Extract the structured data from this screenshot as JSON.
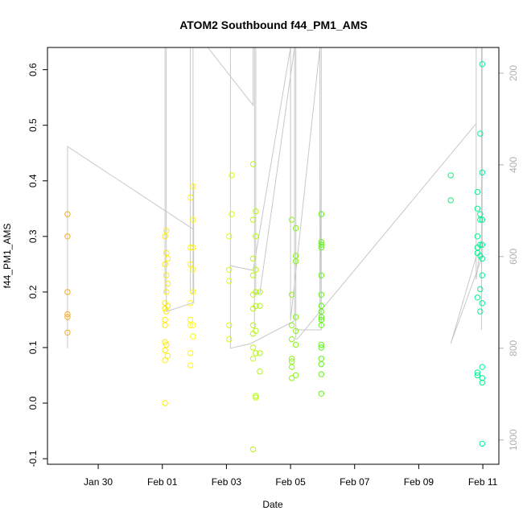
{
  "chart_data": {
    "type": "scatter",
    "title": "ATOM2 Southbound f44_PM1_AMS",
    "xlabel": "Date",
    "ylabel": "f44_PM1_AMS",
    "xlim": [
      "2017-01-28T10:00",
      "2017-02-11T12:00"
    ],
    "ylim": [
      -0.11,
      0.64
    ],
    "y_ticks": [
      -0.1,
      0.0,
      0.1,
      0.2,
      0.3,
      0.4,
      0.5,
      0.6
    ],
    "y_tick_labels": [
      "-0.1",
      "0.0",
      "0.1",
      "0.2",
      "0.3",
      "0.4",
      "0.5",
      "0.6"
    ],
    "x_ticks": [
      "2017-01-30",
      "2017-02-01",
      "2017-02-03",
      "2017-02-05",
      "2017-02-07",
      "2017-02-09",
      "2017-02-11"
    ],
    "x_tick_labels": [
      "Jan 30",
      "Feb 01",
      "Feb 03",
      "Feb 05",
      "Feb 07",
      "Feb 09",
      "Feb 11"
    ],
    "right_axis": {
      "ylim": [
        1053,
        144
      ],
      "ticks": [
        200,
        400,
        600,
        800,
        1000
      ],
      "tick_labels": [
        "200",
        "400",
        "600",
        "800",
        "1000"
      ],
      "color": "#b0b0b0"
    },
    "grid": false,
    "marker": "open-circle",
    "point_color_gradient": [
      "#f0a030",
      "#ffff00",
      "#40f020",
      "#00f0a0"
    ],
    "series": [
      {
        "values": [
          {
            "x": "2017-01-29T01:00",
            "y": 0.34
          },
          {
            "x": "2017-01-29T01:00",
            "y": 0.3
          },
          {
            "x": "2017-01-29T01:00",
            "y": 0.2
          },
          {
            "x": "2017-01-29T01:00",
            "y": 0.16
          },
          {
            "x": "2017-01-29T01:00",
            "y": 0.155
          },
          {
            "x": "2017-01-29T01:00",
            "y": 0.127
          },
          {
            "x": "2017-02-01T02:00",
            "y": 0.3
          },
          {
            "x": "2017-02-01T02:00",
            "y": 0.25
          },
          {
            "x": "2017-02-01T02:00",
            "y": 0.18
          },
          {
            "x": "2017-02-01T02:00",
            "y": 0.17
          },
          {
            "x": "2017-02-01T02:00",
            "y": 0.15
          },
          {
            "x": "2017-02-01T02:00",
            "y": 0.14
          },
          {
            "x": "2017-02-01T02:00",
            "y": 0.11
          },
          {
            "x": "2017-02-01T02:00",
            "y": 0.095
          },
          {
            "x": "2017-02-01T02:00",
            "y": 0.077
          },
          {
            "x": "2017-02-01T02:00",
            "y": 0.0
          },
          {
            "x": "2017-02-01T03:00",
            "y": 0.31
          },
          {
            "x": "2017-02-01T03:00",
            "y": 0.27
          },
          {
            "x": "2017-02-01T03:00",
            "y": 0.23
          },
          {
            "x": "2017-02-01T03:00",
            "y": 0.2
          },
          {
            "x": "2017-02-01T03:00",
            "y": 0.165
          },
          {
            "x": "2017-02-01T03:00",
            "y": 0.105
          },
          {
            "x": "2017-02-01T04:00",
            "y": 0.26
          },
          {
            "x": "2017-02-01T04:00",
            "y": 0.215
          },
          {
            "x": "2017-02-01T04:00",
            "y": 0.175
          },
          {
            "x": "2017-02-01T04:00",
            "y": 0.085
          },
          {
            "x": "2017-02-01T21:00",
            "y": 0.37
          },
          {
            "x": "2017-02-01T21:00",
            "y": 0.28
          },
          {
            "x": "2017-02-01T21:00",
            "y": 0.25
          },
          {
            "x": "2017-02-01T21:00",
            "y": 0.18
          },
          {
            "x": "2017-02-01T21:00",
            "y": 0.15
          },
          {
            "x": "2017-02-01T21:00",
            "y": 0.14
          },
          {
            "x": "2017-02-01T21:00",
            "y": 0.09
          },
          {
            "x": "2017-02-01T21:00",
            "y": 0.068
          },
          {
            "x": "2017-02-01T23:00",
            "y": 0.39
          },
          {
            "x": "2017-02-01T23:00",
            "y": 0.33
          },
          {
            "x": "2017-02-01T23:00",
            "y": 0.28
          },
          {
            "x": "2017-02-01T23:00",
            "y": 0.24
          },
          {
            "x": "2017-02-01T23:00",
            "y": 0.2
          },
          {
            "x": "2017-02-01T23:00",
            "y": 0.14
          },
          {
            "x": "2017-02-01T23:00",
            "y": 0.12
          },
          {
            "x": "2017-02-03T02:00",
            "y": 0.3
          },
          {
            "x": "2017-02-03T02:00",
            "y": 0.24
          },
          {
            "x": "2017-02-03T02:00",
            "y": 0.22
          },
          {
            "x": "2017-02-03T02:00",
            "y": 0.14
          },
          {
            "x": "2017-02-03T02:00",
            "y": 0.115
          },
          {
            "x": "2017-02-03T04:00",
            "y": 0.41
          },
          {
            "x": "2017-02-03T04:00",
            "y": 0.34
          },
          {
            "x": "2017-02-03T20:00",
            "y": 0.43
          },
          {
            "x": "2017-02-03T20:00",
            "y": 0.33
          },
          {
            "x": "2017-02-03T20:00",
            "y": 0.26
          },
          {
            "x": "2017-02-03T20:00",
            "y": 0.23
          },
          {
            "x": "2017-02-03T20:00",
            "y": 0.195
          },
          {
            "x": "2017-02-03T20:00",
            "y": 0.17
          },
          {
            "x": "2017-02-03T20:00",
            "y": 0.14
          },
          {
            "x": "2017-02-03T20:00",
            "y": 0.125
          },
          {
            "x": "2017-02-03T20:00",
            "y": 0.1
          },
          {
            "x": "2017-02-03T20:00",
            "y": 0.08
          },
          {
            "x": "2017-02-03T20:00",
            "y": -0.083
          },
          {
            "x": "2017-02-03T22:00",
            "y": 0.345
          },
          {
            "x": "2017-02-03T22:00",
            "y": 0.3
          },
          {
            "x": "2017-02-03T22:00",
            "y": 0.24
          },
          {
            "x": "2017-02-03T22:00",
            "y": 0.2
          },
          {
            "x": "2017-02-03T22:00",
            "y": 0.175
          },
          {
            "x": "2017-02-03T22:00",
            "y": 0.13
          },
          {
            "x": "2017-02-03T22:00",
            "y": 0.09
          },
          {
            "x": "2017-02-03T22:00",
            "y": 0.013
          },
          {
            "x": "2017-02-03T22:00",
            "y": 0.01
          },
          {
            "x": "2017-02-04T01:00",
            "y": 0.2
          },
          {
            "x": "2017-02-04T01:00",
            "y": 0.175
          },
          {
            "x": "2017-02-04T01:00",
            "y": 0.09
          },
          {
            "x": "2017-02-04T01:00",
            "y": 0.057
          },
          {
            "x": "2017-02-05T01:00",
            "y": 0.33
          },
          {
            "x": "2017-02-05T01:00",
            "y": 0.195
          },
          {
            "x": "2017-02-05T01:00",
            "y": 0.14
          },
          {
            "x": "2017-02-05T01:00",
            "y": 0.115
          },
          {
            "x": "2017-02-05T01:00",
            "y": 0.08
          },
          {
            "x": "2017-02-05T01:00",
            "y": 0.075
          },
          {
            "x": "2017-02-05T01:00",
            "y": 0.065
          },
          {
            "x": "2017-02-05T01:00",
            "y": 0.045
          },
          {
            "x": "2017-02-05T04:00",
            "y": 0.315
          },
          {
            "x": "2017-02-05T04:00",
            "y": 0.265
          },
          {
            "x": "2017-02-05T04:00",
            "y": 0.255
          },
          {
            "x": "2017-02-05T04:00",
            "y": 0.155
          },
          {
            "x": "2017-02-05T04:00",
            "y": 0.13
          },
          {
            "x": "2017-02-05T04:00",
            "y": 0.105
          },
          {
            "x": "2017-02-05T04:00",
            "y": 0.05
          },
          {
            "x": "2017-02-05T23:00",
            "y": 0.34
          },
          {
            "x": "2017-02-05T23:00",
            "y": 0.29
          },
          {
            "x": "2017-02-05T23:00",
            "y": 0.285
          },
          {
            "x": "2017-02-05T23:00",
            "y": 0.28
          },
          {
            "x": "2017-02-05T23:00",
            "y": 0.23
          },
          {
            "x": "2017-02-05T23:00",
            "y": 0.195
          },
          {
            "x": "2017-02-05T23:00",
            "y": 0.175
          },
          {
            "x": "2017-02-05T23:00",
            "y": 0.165
          },
          {
            "x": "2017-02-05T23:00",
            "y": 0.155
          },
          {
            "x": "2017-02-05T23:00",
            "y": 0.15
          },
          {
            "x": "2017-02-05T23:00",
            "y": 0.14
          },
          {
            "x": "2017-02-05T23:00",
            "y": 0.105
          },
          {
            "x": "2017-02-05T23:00",
            "y": 0.1
          },
          {
            "x": "2017-02-05T23:00",
            "y": 0.08
          },
          {
            "x": "2017-02-05T23:00",
            "y": 0.07
          },
          {
            "x": "2017-02-05T23:00",
            "y": 0.052
          },
          {
            "x": "2017-02-05T23:00",
            "y": 0.017
          },
          {
            "x": "2017-02-10T00:00",
            "y": 0.41
          },
          {
            "x": "2017-02-10T00:00",
            "y": 0.365
          },
          {
            "x": "2017-02-10T20:00",
            "y": 0.38
          },
          {
            "x": "2017-02-10T20:00",
            "y": 0.35
          },
          {
            "x": "2017-02-10T20:00",
            "y": 0.3
          },
          {
            "x": "2017-02-10T20:00",
            "y": 0.28
          },
          {
            "x": "2017-02-10T20:00",
            "y": 0.27
          },
          {
            "x": "2017-02-10T20:00",
            "y": 0.19
          },
          {
            "x": "2017-02-10T20:00",
            "y": 0.055
          },
          {
            "x": "2017-02-10T20:00",
            "y": 0.05
          },
          {
            "x": "2017-02-10T22:00",
            "y": 0.485
          },
          {
            "x": "2017-02-10T22:00",
            "y": 0.34
          },
          {
            "x": "2017-02-10T22:00",
            "y": 0.33
          },
          {
            "x": "2017-02-10T22:00",
            "y": 0.285
          },
          {
            "x": "2017-02-10T22:00",
            "y": 0.265
          },
          {
            "x": "2017-02-10T22:00",
            "y": 0.205
          },
          {
            "x": "2017-02-10T22:00",
            "y": 0.165
          },
          {
            "x": "2017-02-10T23:30",
            "y": 0.61
          },
          {
            "x": "2017-02-10T23:30",
            "y": 0.415
          },
          {
            "x": "2017-02-10T23:30",
            "y": 0.33
          },
          {
            "x": "2017-02-10T23:30",
            "y": 0.285
          },
          {
            "x": "2017-02-10T23:30",
            "y": 0.26
          },
          {
            "x": "2017-02-10T23:30",
            "y": 0.23
          },
          {
            "x": "2017-02-10T23:30",
            "y": 0.18
          },
          {
            "x": "2017-02-10T23:30",
            "y": 0.065
          },
          {
            "x": "2017-02-10T23:30",
            "y": 0.045
          },
          {
            "x": "2017-02-10T23:30",
            "y": 0.037
          },
          {
            "x": "2017-02-10T23:30",
            "y": -0.073
          }
        ]
      }
    ],
    "line_series": {
      "axis": "right",
      "color": "#c8c8c8",
      "values": [
        {
          "x": "2017-01-29T01:00",
          "y": 800
        },
        {
          "x": "2017-01-29T01:00",
          "y": 360
        },
        {
          "x": "2017-02-01T23:00",
          "y": 540
        },
        {
          "x": "2017-02-01T23:00",
          "y": 520
        },
        {
          "x": "2017-02-01T23:30",
          "y": 440
        },
        {
          "x": "2017-02-01T23:30",
          "y": 700
        },
        {
          "x": "2017-02-02T00:00",
          "y": 700
        },
        {
          "x": "2017-02-01T03:00",
          "y": 720
        },
        {
          "x": "2017-02-01T03:00",
          "y": 144
        },
        {
          "x": "2017-02-01T02:00",
          "y": 144
        },
        {
          "x": "2017-02-01T02:00",
          "y": 680
        },
        {
          "x": "2017-02-01T02:00",
          "y": 144
        },
        {
          "x": "2017-02-01T21:00",
          "y": 144
        },
        {
          "x": "2017-02-01T21:00",
          "y": 680
        },
        {
          "x": "2017-02-01T23:00",
          "y": 680
        },
        {
          "x": "2017-02-01T23:00",
          "y": 144
        },
        {
          "x": "2017-02-02T10:00",
          "y": 144
        },
        {
          "x": "2017-02-03T20:00",
          "y": 270
        },
        {
          "x": "2017-02-03T20:00",
          "y": 144
        },
        {
          "x": "2017-02-03T21:00",
          "y": 144
        },
        {
          "x": "2017-02-03T21:00",
          "y": 760
        },
        {
          "x": "2017-02-03T21:00",
          "y": 144
        },
        {
          "x": "2017-02-03T22:00",
          "y": 144
        },
        {
          "x": "2017-02-03T22:00",
          "y": 680
        },
        {
          "x": "2017-02-04T01:00",
          "y": 680
        },
        {
          "x": "2017-02-05T03:00",
          "y": 144
        },
        {
          "x": "2017-02-05T03:00",
          "y": 740
        },
        {
          "x": "2017-02-03T18:00",
          "y": 790
        },
        {
          "x": "2017-02-03T03:00",
          "y": 800
        },
        {
          "x": "2017-02-03T03:00",
          "y": 144
        },
        {
          "x": "2017-02-03T03:00",
          "y": 620
        },
        {
          "x": "2017-02-03T20:00",
          "y": 630
        },
        {
          "x": "2017-02-05T00:00",
          "y": 144
        },
        {
          "x": "2017-02-05T00:00",
          "y": 740
        },
        {
          "x": "2017-02-05T22:00",
          "y": 120
        },
        {
          "x": "2017-02-05T22:00",
          "y": 740
        },
        {
          "x": "2017-02-05T23:00",
          "y": 400
        },
        {
          "x": "2017-02-05T23:00",
          "y": 700
        },
        {
          "x": "2017-02-05T23:00",
          "y": 144
        },
        {
          "x": "2017-02-05T23:00",
          "y": 760
        },
        {
          "x": "2017-02-05T04:00",
          "y": 760
        },
        {
          "x": "2017-02-05T04:00",
          "y": 144
        },
        {
          "x": "2017-02-05T04:00",
          "y": 780
        },
        {
          "x": "2017-02-05T05:00",
          "y": 780
        },
        {
          "x": "2017-02-10T19:00",
          "y": 310
        },
        {
          "x": "2017-02-10T19:00",
          "y": 144
        },
        {
          "x": "2017-02-10T19:00",
          "y": 650
        },
        {
          "x": "2017-02-10T23:00",
          "y": 560
        },
        {
          "x": "2017-02-10T23:00",
          "y": 144
        },
        {
          "x": "2017-02-10T23:00",
          "y": 760
        },
        {
          "x": "2017-02-10T23:30",
          "y": 144
        },
        {
          "x": "2017-02-10T23:30",
          "y": 600
        },
        {
          "x": "2017-02-10T00:00",
          "y": 790
        },
        {
          "x": "2017-02-10T19:00",
          "y": 600
        }
      ]
    }
  }
}
